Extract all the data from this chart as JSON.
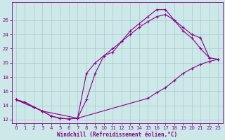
{
  "background_color": "#cce8e8",
  "grid_color": "#aacccc",
  "line_color": "#880088",
  "xlabel": "Windchill (Refroidissement éolien,°C)",
  "tick_color": "#880088",
  "ylim": [
    11.5,
    28.5
  ],
  "xlim": [
    -0.5,
    23.5
  ],
  "yticks": [
    12,
    14,
    16,
    18,
    20,
    22,
    24,
    26
  ],
  "xticks": [
    0,
    1,
    2,
    3,
    4,
    5,
    6,
    7,
    8,
    9,
    10,
    11,
    12,
    13,
    14,
    15,
    16,
    17,
    18,
    19,
    20,
    21,
    22,
    23
  ],
  "series": [
    {
      "x": [
        0,
        1,
        2,
        3,
        4,
        5,
        6,
        7,
        8,
        9,
        10,
        11,
        12,
        13,
        14,
        15,
        16,
        17,
        18,
        19,
        20,
        21,
        22,
        23
      ],
      "y": [
        14.8,
        14.5,
        13.8,
        13.2,
        12.5,
        12.2,
        12.1,
        12.2,
        14.8,
        18.5,
        21.0,
        21.5,
        23.0,
        24.5,
        25.5,
        26.5,
        27.5,
        27.5,
        26.0,
        25.0,
        24.0,
        23.5,
        20.7,
        null
      ]
    },
    {
      "x": [
        0,
        3,
        7,
        15,
        16,
        17,
        18,
        19,
        20,
        21,
        22,
        23
      ],
      "y": [
        14.8,
        13.2,
        12.2,
        15.0,
        15.8,
        16.5,
        17.5,
        18.5,
        19.2,
        19.8,
        20.2,
        20.5
      ]
    },
    {
      "x": [
        0,
        2,
        3,
        4,
        5,
        6,
        7,
        8,
        9,
        10,
        11,
        12,
        13,
        14,
        15,
        16,
        17,
        18,
        19,
        20,
        21,
        22,
        23
      ],
      "y": [
        14.8,
        13.8,
        13.2,
        12.5,
        12.2,
        12.1,
        12.2,
        18.5,
        20.0,
        21.0,
        22.0,
        23.0,
        24.0,
        25.0,
        25.8,
        26.5,
        26.8,
        26.0,
        24.5,
        23.5,
        22.0,
        20.7,
        20.5
      ]
    }
  ]
}
